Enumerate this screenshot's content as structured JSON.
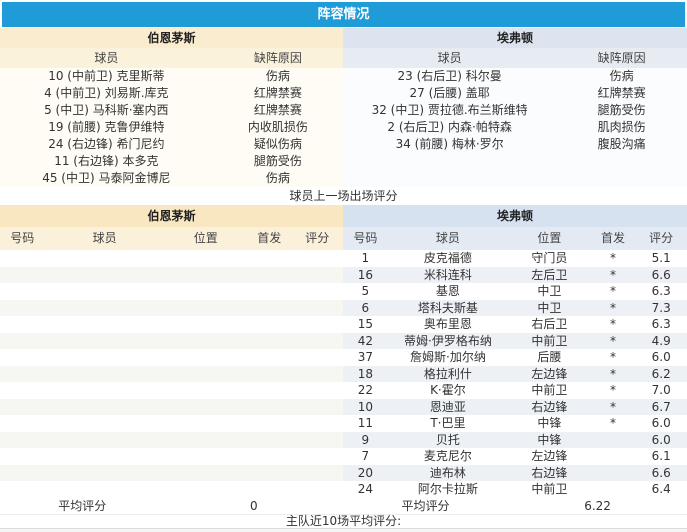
{
  "title": "阵容情况",
  "teams": {
    "home": "伯恩茅斯",
    "away": "埃弗顿"
  },
  "absence": {
    "col_player": "球员",
    "col_reason": "缺阵原因",
    "home_rows": [
      {
        "player": "10 (中前卫) 克里斯蒂",
        "reason": "伤病"
      },
      {
        "player": "4 (中前卫) 刘易斯.库克",
        "reason": "红牌禁赛"
      },
      {
        "player": "5 (中卫) 马科斯·塞内西",
        "reason": "红牌禁赛"
      },
      {
        "player": "19 (前腰) 克鲁伊维特",
        "reason": "内收肌损伤"
      },
      {
        "player": "24 (右边锋) 希门尼约",
        "reason": "疑似伤病"
      },
      {
        "player": "11 (右边锋) 本多克",
        "reason": "腿筋受伤"
      },
      {
        "player": "45 (中卫) 马泰阿金博尼",
        "reason": "伤病"
      }
    ],
    "away_rows": [
      {
        "player": "23 (右后卫) 科尔曼",
        "reason": "伤病"
      },
      {
        "player": "27 (后腰) 盖耶",
        "reason": "红牌禁赛"
      },
      {
        "player": "32 (中卫) 贾拉德.布兰斯维特",
        "reason": "腿筋受伤"
      },
      {
        "player": "2 (右后卫) 内森·帕特森",
        "reason": "肌肉损伤"
      },
      {
        "player": "34 (前腰) 梅林·罗尔",
        "reason": "腹股沟痛"
      }
    ]
  },
  "divider": "球员上一场出场评分",
  "ratings": {
    "columns": [
      "号码",
      "球员",
      "位置",
      "首发",
      "评分"
    ],
    "home": {
      "rows": [],
      "empty_slots": 15,
      "avg_label": "平均评分",
      "avg_value": "0"
    },
    "away": {
      "rows": [
        {
          "no": "1",
          "player": "皮克福德",
          "pos": "守门员",
          "start": "*",
          "rating": "5.1"
        },
        {
          "no": "16",
          "player": "米科连科",
          "pos": "左后卫",
          "start": "*",
          "rating": "6.6"
        },
        {
          "no": "5",
          "player": "基恩",
          "pos": "中卫",
          "start": "*",
          "rating": "6.3"
        },
        {
          "no": "6",
          "player": "塔科夫斯基",
          "pos": "中卫",
          "start": "*",
          "rating": "7.3"
        },
        {
          "no": "15",
          "player": "奥布里恩",
          "pos": "右后卫",
          "start": "*",
          "rating": "6.3"
        },
        {
          "no": "42",
          "player": "蒂姆·伊罗格布纳",
          "pos": "中前卫",
          "start": "*",
          "rating": "4.9"
        },
        {
          "no": "37",
          "player": "詹姆斯·加尔纳",
          "pos": "后腰",
          "start": "*",
          "rating": "6.0"
        },
        {
          "no": "18",
          "player": "格拉利什",
          "pos": "左边锋",
          "start": "*",
          "rating": "6.2"
        },
        {
          "no": "22",
          "player": "K·霍尔",
          "pos": "中前卫",
          "start": "*",
          "rating": "7.0"
        },
        {
          "no": "10",
          "player": "恩迪亚",
          "pos": "右边锋",
          "start": "*",
          "rating": "6.7"
        },
        {
          "no": "11",
          "player": "T·巴里",
          "pos": "中锋",
          "start": "*",
          "rating": "6.0"
        },
        {
          "no": "9",
          "player": "贝托",
          "pos": "中锋",
          "start": "",
          "rating": "6.0"
        },
        {
          "no": "7",
          "player": "麦克尼尔",
          "pos": "左边锋",
          "start": "",
          "rating": "6.1"
        },
        {
          "no": "20",
          "player": "迪布林",
          "pos": "右边锋",
          "start": "",
          "rating": "6.6"
        },
        {
          "no": "24",
          "player": "阿尔卡拉斯",
          "pos": "中前卫",
          "start": "",
          "rating": "6.4"
        }
      ],
      "avg_label": "平均评分",
      "avg_value": "6.22"
    }
  },
  "footer": "主队近10场平均评分:",
  "colors": {
    "accent_blue": "#1F9BD8",
    "home_tint": "#FAEDCF",
    "away_tint": "#DDE4EF"
  }
}
